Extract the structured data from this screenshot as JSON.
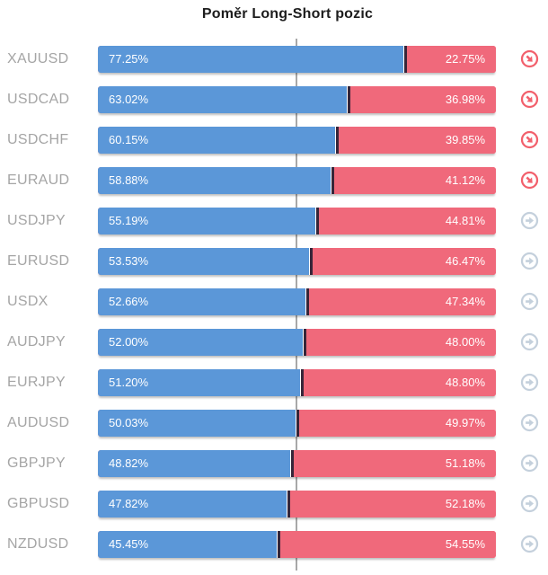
{
  "title": "Poměr Long-Short pozic",
  "colors": {
    "long_bar": "#5b97d8",
    "short_bar": "#f0697b",
    "divider_marker": "#362539",
    "symbol_label": "#a5a5a5",
    "center_line": "#a8a8a8",
    "sell_icon": "#f2606c",
    "neutral_icon": "#c4d0dc",
    "title_text": "#1d1d1d",
    "bar_value_text": "#ffffff"
  },
  "icons": {
    "sell": "arrow-down-right-circle-icon",
    "neutral": "arrow-right-circle-icon"
  },
  "chart_data": {
    "type": "bar",
    "orientation": "horizontal",
    "stacked": true,
    "title": "Poměr Long-Short pozic",
    "legend_position": "none",
    "grid": false,
    "center_reference_pct": 50,
    "series": [
      {
        "name": "Long",
        "color": "#5b97d8"
      },
      {
        "name": "Short",
        "color": "#f0697b"
      }
    ],
    "rows": [
      {
        "symbol": "XAUUSD",
        "long_pct": 77.25,
        "short_pct": 22.75,
        "long_label": "77.25%",
        "short_label": "22.75%",
        "signal": "down"
      },
      {
        "symbol": "USDCAD",
        "long_pct": 63.02,
        "short_pct": 36.98,
        "long_label": "63.02%",
        "short_label": "36.98%",
        "signal": "down"
      },
      {
        "symbol": "USDCHF",
        "long_pct": 60.15,
        "short_pct": 39.85,
        "long_label": "60.15%",
        "short_label": "39.85%",
        "signal": "down"
      },
      {
        "symbol": "EURAUD",
        "long_pct": 58.88,
        "short_pct": 41.12,
        "long_label": "58.88%",
        "short_label": "41.12%",
        "signal": "down"
      },
      {
        "symbol": "USDJPY",
        "long_pct": 55.19,
        "short_pct": 44.81,
        "long_label": "55.19%",
        "short_label": "44.81%",
        "signal": "neutral"
      },
      {
        "symbol": "EURUSD",
        "long_pct": 53.53,
        "short_pct": 46.47,
        "long_label": "53.53%",
        "short_label": "46.47%",
        "signal": "neutral"
      },
      {
        "symbol": "USDX",
        "long_pct": 52.66,
        "short_pct": 47.34,
        "long_label": "52.66%",
        "short_label": "47.34%",
        "signal": "neutral"
      },
      {
        "symbol": "AUDJPY",
        "long_pct": 52.0,
        "short_pct": 48.0,
        "long_label": "52.00%",
        "short_label": "48.00%",
        "signal": "neutral"
      },
      {
        "symbol": "EURJPY",
        "long_pct": 51.2,
        "short_pct": 48.8,
        "long_label": "51.20%",
        "short_label": "48.80%",
        "signal": "neutral"
      },
      {
        "symbol": "AUDUSD",
        "long_pct": 50.03,
        "short_pct": 49.97,
        "long_label": "50.03%",
        "short_label": "49.97%",
        "signal": "neutral"
      },
      {
        "symbol": "GBPJPY",
        "long_pct": 48.82,
        "short_pct": 51.18,
        "long_label": "48.82%",
        "short_label": "51.18%",
        "signal": "neutral"
      },
      {
        "symbol": "GBPUSD",
        "long_pct": 47.82,
        "short_pct": 52.18,
        "long_label": "47.82%",
        "short_label": "52.18%",
        "signal": "neutral"
      },
      {
        "symbol": "NZDUSD",
        "long_pct": 45.45,
        "short_pct": 54.55,
        "long_label": "45.45%",
        "short_label": "54.55%",
        "signal": "neutral"
      }
    ]
  }
}
